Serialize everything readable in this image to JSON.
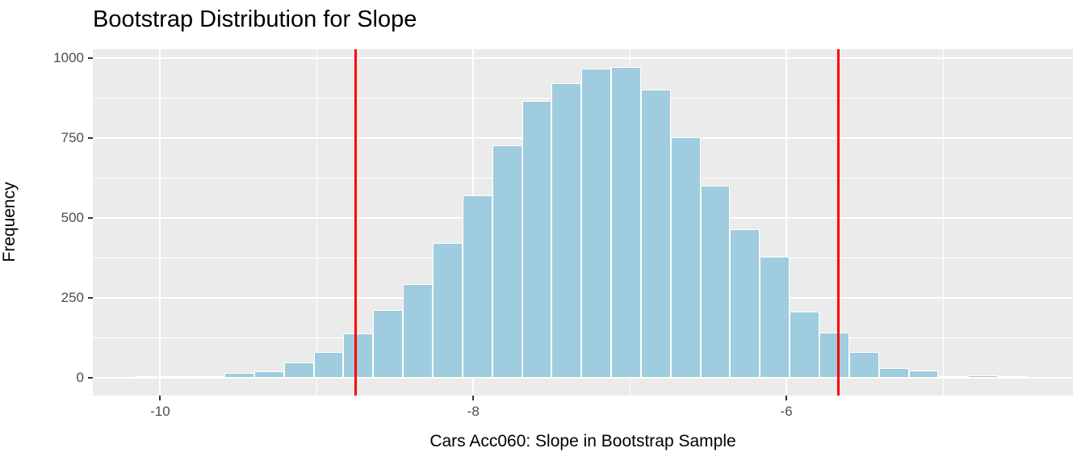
{
  "title": "Bootstrap Distribution for Slope",
  "colors": {
    "panel_bg": "#EBEBEB",
    "grid": "#FFFFFF",
    "bar_fill": "#9FCCDE",
    "bar_stroke": "#FFFFFF",
    "ci_line": "#FF0000",
    "tick_label": "#4D4D4D",
    "tick_mark": "#333333",
    "axis_text": "#000000"
  },
  "chart_data": {
    "type": "bar",
    "subtype": "histogram",
    "title": "Bootstrap Distribution for Slope",
    "xlabel": "Cars Acc060: Slope in Bootstrap Sample",
    "ylabel": "Frequency",
    "xlim": [
      -10.43,
      -4.17
    ],
    "ylim": [
      -55,
      1027
    ],
    "grid": true,
    "legend": false,
    "x_major_ticks": [
      -10,
      -8,
      -6
    ],
    "x_tick_labels": [
      "-10",
      "-8",
      "-6"
    ],
    "x_minor_ticks": [
      -9,
      -7,
      -5
    ],
    "y_major_ticks": [
      0,
      250,
      500,
      750,
      1000
    ],
    "y_tick_labels": [
      "0",
      "250",
      "500",
      "750",
      "1000"
    ],
    "y_minor_ticks": [
      125,
      375,
      625,
      875
    ],
    "bin_width": 0.19,
    "bin_centers": [
      -10.064,
      -9.874,
      -9.684,
      -9.494,
      -9.304,
      -9.114,
      -8.924,
      -8.734,
      -8.544,
      -8.354,
      -8.164,
      -7.974,
      -7.784,
      -7.594,
      -7.404,
      -7.214,
      -7.024,
      -6.834,
      -6.644,
      -6.454,
      -6.264,
      -6.074,
      -5.884,
      -5.694,
      -5.504,
      -5.314,
      -5.124,
      -4.934,
      -4.744,
      -4.554
    ],
    "counts": [
      1,
      2,
      2,
      15,
      20,
      48,
      80,
      138,
      212,
      292,
      422,
      570,
      727,
      865,
      922,
      966,
      972,
      901,
      753,
      602,
      465,
      378,
      208,
      141,
      80,
      30,
      23,
      4,
      9,
      1
    ],
    "vlines": [
      {
        "label": "ci-lower",
        "x": -8.75
      },
      {
        "label": "ci-upper",
        "x": -5.67
      }
    ]
  }
}
